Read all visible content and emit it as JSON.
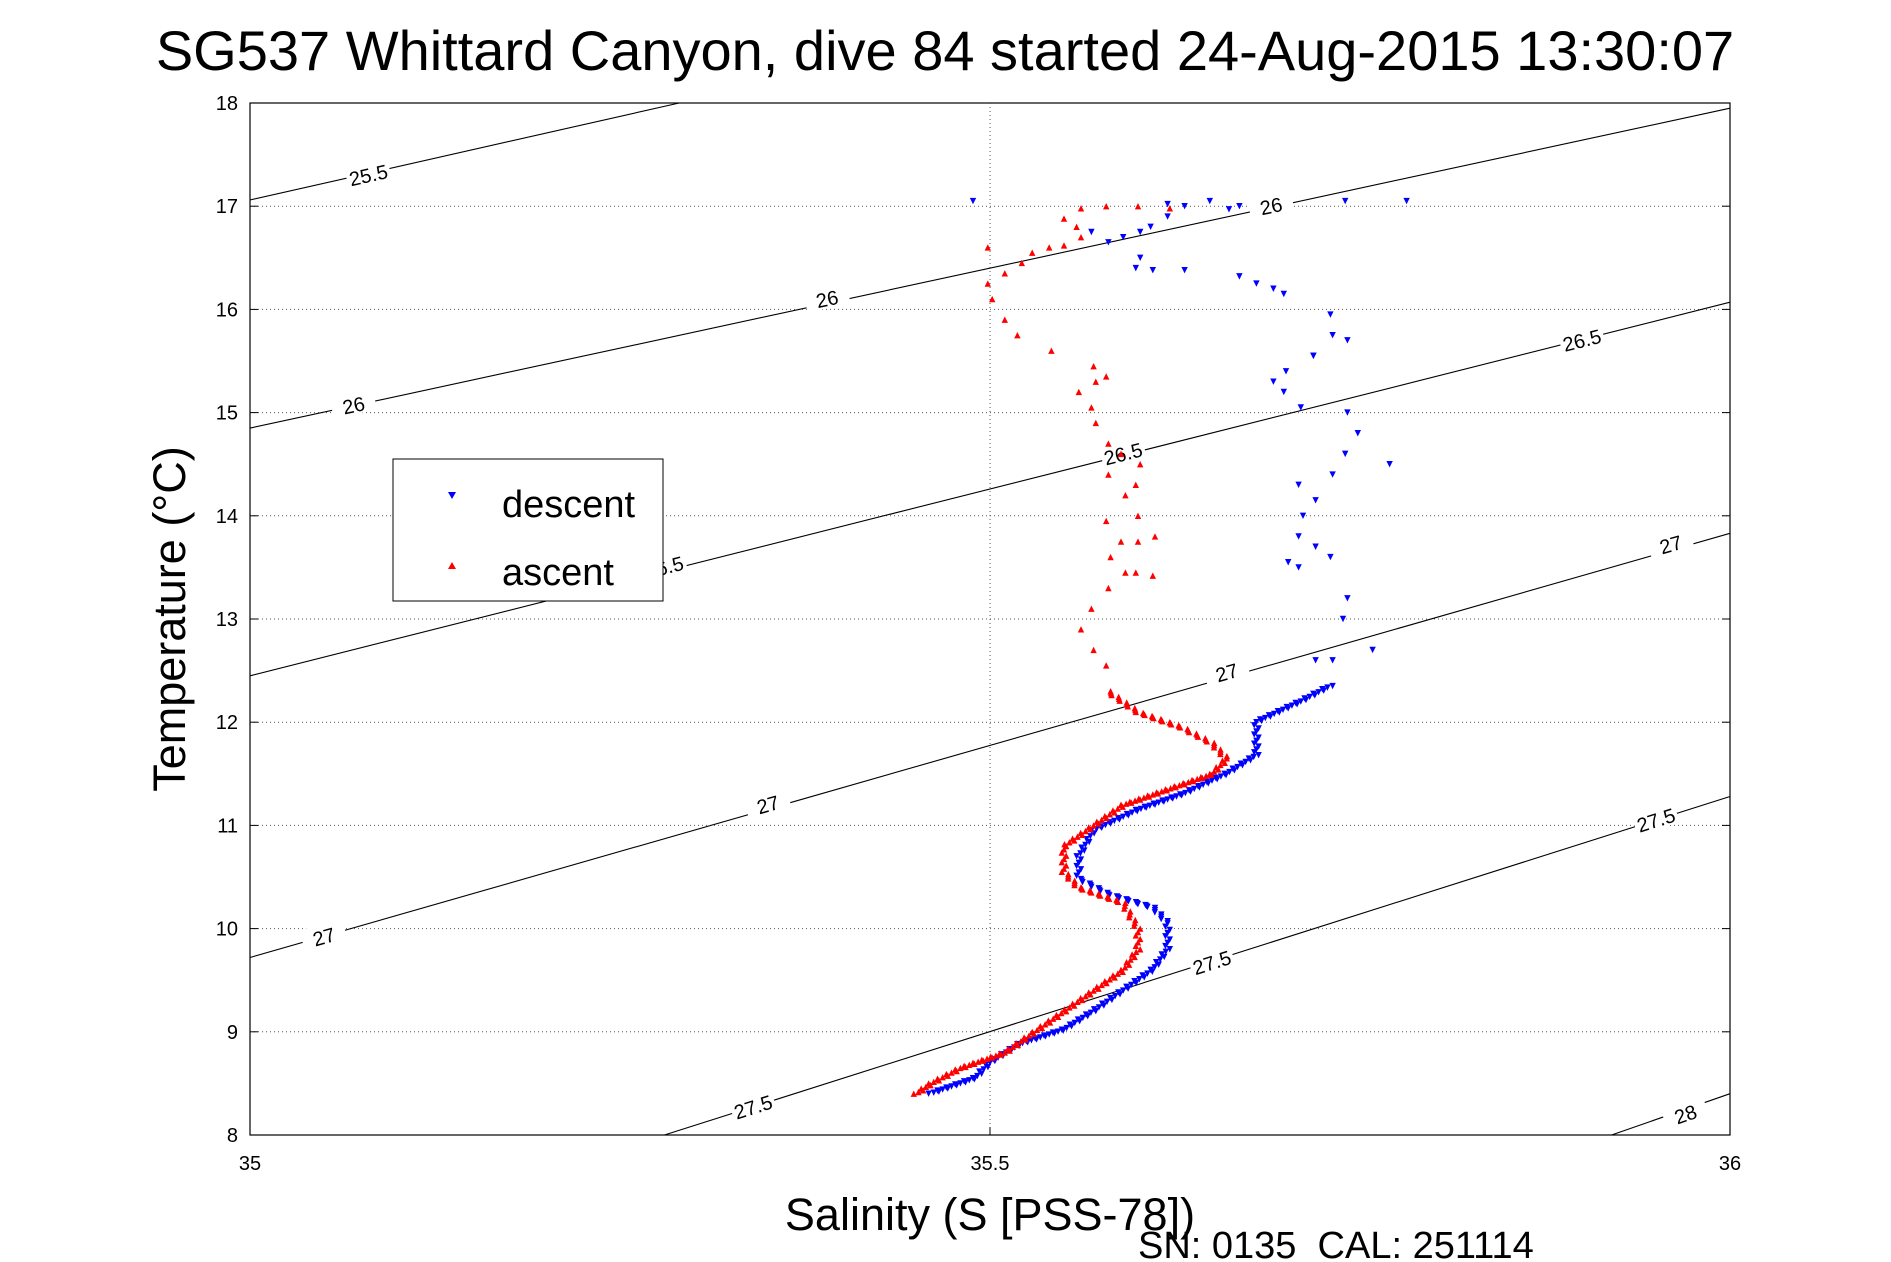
{
  "chart_data": {
    "type": "scatter",
    "title": "SG537 Whittard Canyon, dive 84 started 24-Aug-2015 13:30:07",
    "xlabel": "Salinity (S [PSS-78])",
    "ylabel": "Temperature (°C)",
    "xlim": [
      35,
      36
    ],
    "ylim": [
      8,
      18
    ],
    "x_ticks": [
      "35",
      "35.5",
      "36"
    ],
    "y_ticks": [
      "8",
      "9",
      "10",
      "11",
      "12",
      "13",
      "14",
      "15",
      "16",
      "17",
      "18"
    ],
    "grid": "dotted",
    "legend_position": "left",
    "footer": "SN: 0135  CAL: 251114",
    "density_contours": [
      {
        "value": 25.5,
        "points": [
          [
            35.0,
            17.06
          ],
          [
            35.29,
            18.0
          ]
        ],
        "labels": [
          {
            "text": "25.5",
            "at": [
              35.08,
              17.3
            ]
          }
        ]
      },
      {
        "value": 26,
        "points": [
          [
            35.0,
            14.85
          ],
          [
            36.0,
            17.95
          ]
        ],
        "labels": [
          {
            "text": "26",
            "at": [
              35.07,
              15.07
            ]
          },
          {
            "text": "26",
            "at": [
              35.39,
              16.1
            ]
          },
          {
            "text": "26",
            "at": [
              35.69,
              17.0
            ]
          }
        ]
      },
      {
        "value": 26.5,
        "points": [
          [
            35.0,
            12.45
          ],
          [
            36.0,
            16.07
          ]
        ],
        "labels": [
          {
            "text": "26.5",
            "at": [
              35.28,
              13.5
            ]
          },
          {
            "text": "26.5",
            "at": [
              35.59,
              14.6
            ]
          },
          {
            "text": "26.5",
            "at": [
              35.9,
              15.7
            ]
          }
        ]
      },
      {
        "value": 27,
        "points": [
          [
            35.0,
            9.72
          ],
          [
            36.0,
            13.83
          ]
        ],
        "labels": [
          {
            "text": "27",
            "at": [
              35.05,
              9.92
            ]
          },
          {
            "text": "27",
            "at": [
              35.35,
              11.2
            ]
          },
          {
            "text": "27",
            "at": [
              35.66,
              12.48
            ]
          },
          {
            "text": "27",
            "at": [
              35.96,
              13.72
            ]
          }
        ]
      },
      {
        "value": 27.5,
        "points": [
          [
            35.28,
            8.0
          ],
          [
            36.0,
            11.28
          ]
        ],
        "labels": [
          {
            "text": "27.5",
            "at": [
              35.34,
              8.27
            ]
          },
          {
            "text": "27.5",
            "at": [
              35.65,
              9.67
            ]
          },
          {
            "text": "27.5",
            "at": [
              35.95,
              11.05
            ]
          }
        ]
      },
      {
        "value": 28,
        "points": [
          [
            35.92,
            8.0
          ],
          [
            36.0,
            8.4
          ]
        ],
        "labels": [
          {
            "text": "28",
            "at": [
              35.97,
              8.2
            ]
          }
        ]
      }
    ],
    "series": [
      {
        "name": "descent",
        "color": "#0000ff",
        "marker": "triangle-down",
        "path_t": [
          [
            35.46,
            8.4
          ],
          [
            35.47,
            8.45
          ],
          [
            35.49,
            8.55
          ],
          [
            35.5,
            8.7
          ],
          [
            35.52,
            8.88
          ],
          [
            35.55,
            9.02
          ],
          [
            35.57,
            9.2
          ],
          [
            35.59,
            9.4
          ],
          [
            35.61,
            9.6
          ],
          [
            35.62,
            9.8
          ],
          [
            35.62,
            10.05
          ],
          [
            35.61,
            10.2
          ],
          [
            35.58,
            10.33
          ],
          [
            35.56,
            10.48
          ],
          [
            35.56,
            10.7
          ],
          [
            35.57,
            10.95
          ],
          [
            35.6,
            11.15
          ],
          [
            35.63,
            11.3
          ],
          [
            35.66,
            11.5
          ],
          [
            35.68,
            11.68
          ],
          [
            35.68,
            11.82
          ],
          [
            35.68,
            12.0
          ],
          [
            35.71,
            12.2
          ],
          [
            35.73,
            12.35
          ]
        ],
        "scattered": [
          [
            35.49,
            17.05
          ],
          [
            35.59,
            16.7
          ],
          [
            35.6,
            16.75
          ],
          [
            35.61,
            16.8
          ],
          [
            35.62,
            16.9
          ],
          [
            35.63,
            17.0
          ],
          [
            35.65,
            17.05
          ],
          [
            35.62,
            17.02
          ],
          [
            35.66,
            16.97
          ],
          [
            35.67,
            17.0
          ],
          [
            35.74,
            17.05
          ],
          [
            35.78,
            17.05
          ],
          [
            35.57,
            16.75
          ],
          [
            35.58,
            16.65
          ],
          [
            35.6,
            16.5
          ],
          [
            35.6,
            16.4
          ],
          [
            35.61,
            16.38
          ],
          [
            35.63,
            16.38
          ],
          [
            35.67,
            16.32
          ],
          [
            35.68,
            16.25
          ],
          [
            35.69,
            16.2
          ],
          [
            35.7,
            16.15
          ],
          [
            35.73,
            15.95
          ],
          [
            35.73,
            15.75
          ],
          [
            35.72,
            15.55
          ],
          [
            35.7,
            15.4
          ],
          [
            35.69,
            15.3
          ],
          [
            35.7,
            15.2
          ],
          [
            35.71,
            15.05
          ],
          [
            35.74,
            15.0
          ],
          [
            35.75,
            14.8
          ],
          [
            35.74,
            14.6
          ],
          [
            35.73,
            14.4
          ],
          [
            35.71,
            14.3
          ],
          [
            35.72,
            14.15
          ],
          [
            35.71,
            14.0
          ],
          [
            35.71,
            13.8
          ],
          [
            35.72,
            13.7
          ],
          [
            35.7,
            13.55
          ],
          [
            35.71,
            13.5
          ],
          [
            35.73,
            13.6
          ],
          [
            35.74,
            13.2
          ],
          [
            35.74,
            13.0
          ],
          [
            35.72,
            12.6
          ],
          [
            35.73,
            12.6
          ],
          [
            35.76,
            12.7
          ],
          [
            35.77,
            14.5
          ],
          [
            35.74,
            15.7
          ],
          [
            35.72,
            15.55
          ]
        ]
      },
      {
        "name": "ascent",
        "color": "#ff0000",
        "marker": "triangle-up",
        "path_t": [
          [
            35.45,
            8.4
          ],
          [
            35.46,
            8.5
          ],
          [
            35.48,
            8.65
          ],
          [
            35.51,
            8.8
          ],
          [
            35.53,
            9.0
          ],
          [
            35.55,
            9.2
          ],
          [
            35.57,
            9.4
          ],
          [
            35.59,
            9.6
          ],
          [
            35.6,
            9.8
          ],
          [
            35.6,
            10.0
          ],
          [
            35.59,
            10.25
          ],
          [
            35.56,
            10.4
          ],
          [
            35.55,
            10.55
          ],
          [
            35.55,
            10.8
          ],
          [
            35.57,
            11.0
          ],
          [
            35.59,
            11.2
          ],
          [
            35.62,
            11.35
          ],
          [
            35.65,
            11.5
          ],
          [
            35.66,
            11.65
          ],
          [
            35.65,
            11.8
          ],
          [
            35.63,
            11.95
          ],
          [
            35.6,
            12.1
          ],
          [
            35.58,
            12.3
          ]
        ],
        "scattered": [
          [
            35.58,
            12.55
          ],
          [
            35.57,
            12.7
          ],
          [
            35.56,
            12.9
          ],
          [
            35.57,
            13.1
          ],
          [
            35.58,
            13.3
          ],
          [
            35.59,
            13.45
          ],
          [
            35.6,
            13.45
          ],
          [
            35.61,
            13.42
          ],
          [
            35.58,
            13.6
          ],
          [
            35.59,
            13.75
          ],
          [
            35.6,
            13.75
          ],
          [
            35.61,
            13.8
          ],
          [
            35.58,
            13.95
          ],
          [
            35.6,
            14.0
          ],
          [
            35.59,
            14.2
          ],
          [
            35.6,
            14.3
          ],
          [
            35.58,
            14.4
          ],
          [
            35.6,
            14.5
          ],
          [
            35.59,
            14.6
          ],
          [
            35.58,
            14.7
          ],
          [
            35.57,
            14.9
          ],
          [
            35.57,
            15.05
          ],
          [
            35.56,
            15.2
          ],
          [
            35.57,
            15.3
          ],
          [
            35.58,
            15.35
          ],
          [
            35.57,
            15.45
          ],
          [
            35.54,
            15.6
          ],
          [
            35.52,
            15.75
          ],
          [
            35.51,
            15.9
          ],
          [
            35.5,
            16.1
          ],
          [
            35.5,
            16.25
          ],
          [
            35.51,
            16.35
          ],
          [
            35.52,
            16.45
          ],
          [
            35.53,
            16.55
          ],
          [
            35.55,
            16.62
          ],
          [
            35.56,
            16.7
          ],
          [
            35.56,
            16.8
          ],
          [
            35.55,
            16.88
          ],
          [
            35.56,
            16.98
          ],
          [
            35.58,
            17.0
          ],
          [
            35.6,
            17.0
          ],
          [
            35.62,
            16.98
          ],
          [
            35.5,
            16.6
          ],
          [
            35.54,
            16.6
          ]
        ]
      }
    ]
  }
}
